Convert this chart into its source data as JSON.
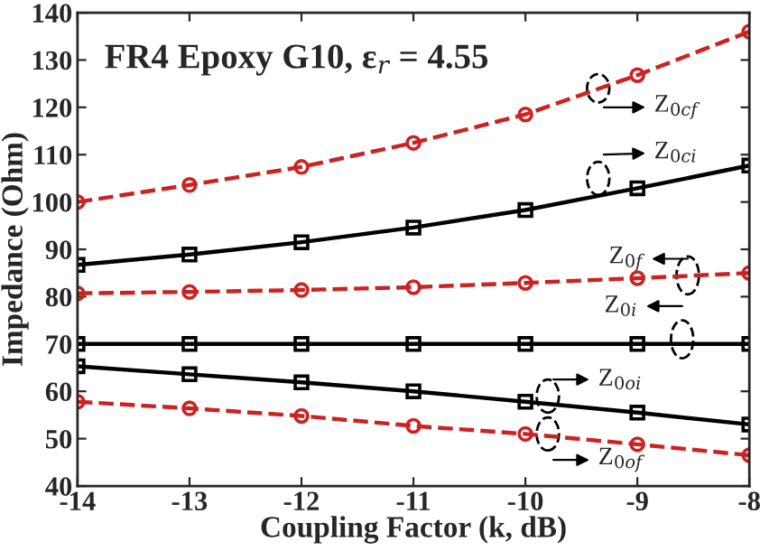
{
  "chart_data": {
    "type": "line",
    "title": "FR4 Epoxy G10, ε$_{r}$ = 4.55",
    "xlabel": "Coupling Factor (k, dB)",
    "ylabel": "Impedance (Ohm)",
    "x": [
      -14,
      -13,
      -12,
      -11,
      -10,
      -9,
      -8
    ],
    "series": [
      {
        "color": "#cc2222",
        "marker": "circle",
        "line_style": "dashed",
        "values": [
          100,
          103.6,
          107.4,
          112.5,
          118.5,
          126.8,
          136
        ]
      },
      {
        "color": "#000000",
        "marker": "square",
        "line_style": "solid",
        "values": [
          86.7,
          88.9,
          91.5,
          94.6,
          98.3,
          102.9,
          107.7
        ]
      },
      {
        "color": "#cc2222",
        "marker": "circle",
        "line_style": "dashed",
        "values": [
          80.7,
          81,
          81.4,
          82,
          82.9,
          83.9,
          85
        ]
      },
      {
        "color": "#000000",
        "marker": "square",
        "line_style": "solid",
        "values": [
          70,
          70,
          70,
          70,
          70,
          70,
          70
        ]
      },
      {
        "color": "#000000",
        "marker": "square",
        "line_style": "solid",
        "values": [
          65.3,
          63.6,
          61.9,
          60,
          57.8,
          55.5,
          53
        ]
      },
      {
        "color": "#cc2222",
        "marker": "circle",
        "line_style": "dashed",
        "values": [
          57.8,
          56.4,
          54.8,
          52.7,
          51,
          48.8,
          46.5
        ]
      }
    ],
    "xlim": [
      -14,
      -8
    ],
    "xticks": [
      -14,
      -13,
      -12,
      -11,
      -10,
      -9,
      -8
    ],
    "ylim": [
      40,
      140
    ],
    "yticks": [
      40,
      50,
      60,
      70,
      80,
      90,
      100,
      110,
      120,
      130,
      140
    ],
    "annotations": [
      {
        "text": "Z$_{0cf}$",
        "x": -9.35,
        "y": 124
      },
      {
        "text": "Z$_{0ci}$",
        "x": -9.35,
        "y": 101
      },
      {
        "text": "Z$_{0f}$",
        "x": -8.55,
        "y": 84.5
      },
      {
        "text": "Z$_{0i}$",
        "x": -8.6,
        "y": 70
      },
      {
        "text": "Z$_{0oi}$",
        "x": -9.8,
        "y": 57.5
      },
      {
        "text": "Z$_{0of}$",
        "x": -9.8,
        "y": 50.5
      }
    ],
    "grid": false,
    "legend": false
  }
}
